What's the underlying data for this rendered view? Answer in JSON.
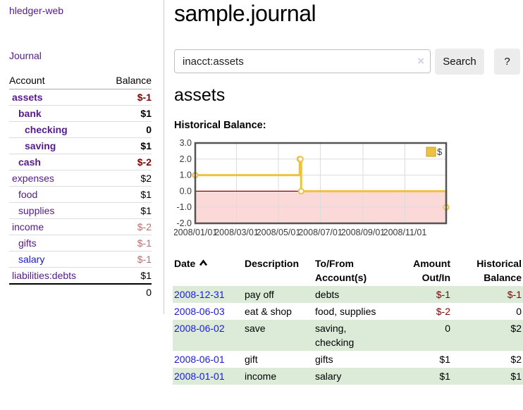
{
  "app": {
    "brand": "hledger-web",
    "nav_journal": "Journal"
  },
  "colors": {
    "link_purple": "#551a8b",
    "link_blue": "#1616dd",
    "negative_strong": "#7c0505",
    "negative_soft": "#b96e6e",
    "row_stripe_green": "#dcebd8",
    "series_gold": "#edc240",
    "plot_border": "#545454",
    "gridline": "#dcdcdc",
    "negative_region": "#fbd9d9",
    "zero_line": "#8b0000",
    "button_gray": "#ececec"
  },
  "sidebar": {
    "col_account": "Account",
    "col_balance": "Balance",
    "rows": [
      {
        "name": "assets",
        "indent": 1,
        "bold": true,
        "name_color": "c-purple",
        "balance": "$-1",
        "balance_class": "v-neg-strong"
      },
      {
        "name": "bank",
        "indent": 2,
        "bold": true,
        "name_color": "c-purple",
        "balance": "$1",
        "balance_class": "v-plain"
      },
      {
        "name": "checking",
        "indent": 3,
        "bold": true,
        "name_color": "c-purple",
        "balance": "0",
        "balance_class": "v-plain"
      },
      {
        "name": "saving",
        "indent": 3,
        "bold": true,
        "name_color": "c-purple",
        "balance": "$1",
        "balance_class": "v-plain"
      },
      {
        "name": "cash",
        "indent": 2,
        "bold": true,
        "name_color": "c-purple",
        "balance": "$-2",
        "balance_class": "v-neg-strong"
      },
      {
        "name": "expenses",
        "indent": 1,
        "bold": false,
        "name_color": "c-purple",
        "balance": "$2",
        "balance_class": "v-plain"
      },
      {
        "name": "food",
        "indent": 2,
        "bold": false,
        "name_color": "c-purple",
        "balance": "$1",
        "balance_class": "v-plain"
      },
      {
        "name": "supplies",
        "indent": 2,
        "bold": false,
        "name_color": "c-purple",
        "balance": "$1",
        "balance_class": "v-plain"
      },
      {
        "name": "income",
        "indent": 1,
        "bold": false,
        "name_color": "c-purple",
        "balance": "$-2",
        "balance_class": "v-neg-soft"
      },
      {
        "name": "gifts",
        "indent": 2,
        "bold": false,
        "name_color": "c-purple",
        "balance": "$-1",
        "balance_class": "v-neg-soft"
      },
      {
        "name": "salary",
        "indent": 2,
        "bold": false,
        "name_color": "c-blue",
        "balance": "$-1",
        "balance_class": "v-neg-soft"
      },
      {
        "name": "liabilities:debts",
        "indent": 1,
        "bold": false,
        "name_color": "c-purple",
        "balance": "$1",
        "balance_class": "v-plain"
      }
    ],
    "total": "0"
  },
  "main": {
    "title": "sample.journal",
    "search": {
      "query": "inacct:assets",
      "clear_icon": "×",
      "button": "Search",
      "help_button": "?"
    },
    "account_heading": "assets",
    "chart_label": "Historical Balance:"
  },
  "chart_data": {
    "type": "line",
    "step": true,
    "title": "Historical Balance",
    "series": [
      {
        "name": "$",
        "color": "#edc240",
        "points": [
          {
            "date": "2008-01-01",
            "day": 0,
            "value": 1
          },
          {
            "date": "2008-06-01",
            "day": 152,
            "value": 2
          },
          {
            "date": "2008-06-02",
            "day": 153,
            "value": 2
          },
          {
            "date": "2008-06-03",
            "day": 154,
            "value": 0
          },
          {
            "date": "2008-12-31",
            "day": 365,
            "value": -1
          }
        ]
      }
    ],
    "x_range_days": [
      0,
      365
    ],
    "x_ticks": [
      {
        "label": "2008/01/01",
        "day": 0
      },
      {
        "label": "2008/03/01",
        "day": 60
      },
      {
        "label": "2008/05/01",
        "day": 121
      },
      {
        "label": "2008/07/01",
        "day": 182
      },
      {
        "label": "2008/09/01",
        "day": 244
      },
      {
        "label": "2008/11/01",
        "day": 305
      }
    ],
    "ylim": [
      -2,
      3
    ],
    "y_ticks": [
      {
        "label": "3.0",
        "value": 3
      },
      {
        "label": "2.0",
        "value": 2
      },
      {
        "label": "1.0",
        "value": 1
      },
      {
        "label": "0.0",
        "value": 0
      },
      {
        "label": "-1.0",
        "value": -1
      },
      {
        "label": "-2.0",
        "value": -2
      }
    ],
    "legend": {
      "label": "$",
      "position": "top-right"
    },
    "grid": true
  },
  "register": {
    "headers": [
      "Date",
      "Description",
      "To/From Account(s)",
      "Amount Out/In",
      "Historical Balance"
    ],
    "rows": [
      {
        "date": "2008-12-31",
        "description": "pay off",
        "accounts": "debts",
        "amount": "$-1",
        "amount_class": "v-neg-strong",
        "balance": "$-1",
        "balance_class": "v-neg-strong",
        "stripe": true
      },
      {
        "date": "2008-06-03",
        "description": "eat & shop",
        "accounts": "food, supplies",
        "amount": "$-2",
        "amount_class": "v-neg-strong",
        "balance": "0",
        "balance_class": "v-plain",
        "stripe": false
      },
      {
        "date": "2008-06-02",
        "description": "save",
        "accounts": "saving, checking",
        "amount": "0",
        "amount_class": "v-plain",
        "balance": "$2",
        "balance_class": "v-plain",
        "stripe": true
      },
      {
        "date": "2008-06-01",
        "description": "gift",
        "accounts": "gifts",
        "amount": "$1",
        "amount_class": "v-plain",
        "balance": "$2",
        "balance_class": "v-plain",
        "stripe": false
      },
      {
        "date": "2008-01-01",
        "description": "income",
        "accounts": "salary",
        "amount": "$1",
        "amount_class": "v-plain",
        "balance": "$1",
        "balance_class": "v-plain",
        "stripe": true
      }
    ]
  }
}
